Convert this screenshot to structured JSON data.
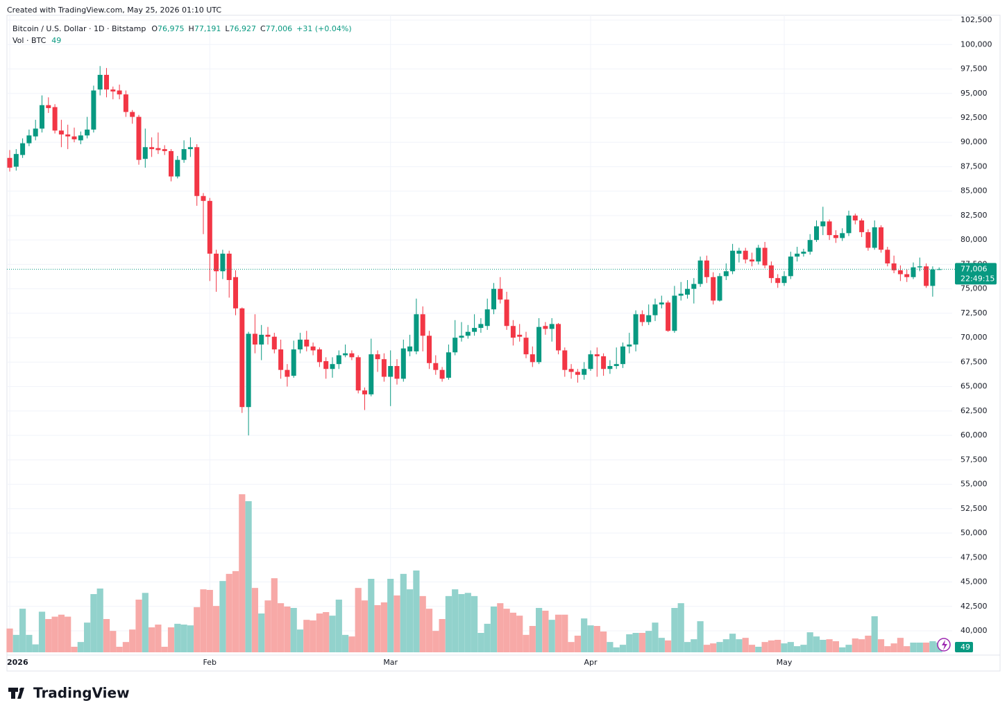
{
  "chart_data": {
    "type": "candlestick",
    "header": "Created with TradingView.com, May 25, 2026 01:10 UTC",
    "symbol": "Bitcoin / U.S. Dollar · 1D · Bitstamp",
    "ohlc_legend": [
      {
        "key": "O",
        "label": "76,975"
      },
      {
        "key": "H",
        "label": "77,191"
      },
      {
        "key": "L",
        "label": "76,927"
      },
      {
        "key": "C",
        "label": "77,006"
      }
    ],
    "change_label": "+31 (+0.04%)",
    "volume_name": "Vol · BTC",
    "last_price_label": "77,006",
    "countdown": "22:49:15",
    "brand": "TradingView",
    "up_color": "#089981",
    "down_color": "#f23645",
    "volume_up_color": "#92d2cc",
    "volume_down_color": "#f7a9a7",
    "grid": true,
    "categories": [
      "2026",
      null,
      null,
      null,
      null,
      null,
      null,
      null,
      null,
      null,
      null,
      null,
      null,
      null,
      null,
      null,
      null,
      null,
      null,
      null,
      null,
      null,
      null,
      null,
      null,
      null,
      null,
      null,
      null,
      null,
      null,
      "Feb",
      null,
      null,
      null,
      null,
      null,
      null,
      null,
      null,
      null,
      null,
      null,
      null,
      null,
      null,
      null,
      null,
      null,
      null,
      null,
      null,
      null,
      null,
      null,
      null,
      null,
      null,
      null,
      "Mar",
      null,
      null,
      null,
      null,
      null,
      null,
      null,
      null,
      null,
      null,
      null,
      null,
      null,
      null,
      null,
      null,
      null,
      null,
      null,
      null,
      null,
      null,
      null,
      null,
      null,
      null,
      null,
      null,
      null,
      null,
      "Apr",
      null,
      null,
      null,
      null,
      null,
      null,
      null,
      null,
      null,
      null,
      null,
      null,
      null,
      null,
      null,
      null,
      null,
      null,
      null,
      null,
      null,
      null,
      null,
      null,
      null,
      null,
      null,
      null,
      null,
      "May",
      null,
      null,
      null,
      null,
      null,
      null,
      null,
      null,
      null,
      null,
      null,
      null,
      null,
      null,
      null,
      null,
      null,
      null,
      null,
      null,
      null,
      null,
      null,
      null
    ],
    "open": [
      88400,
      87500,
      88700,
      89900,
      90600,
      91400,
      93800,
      93600,
      91200,
      90800,
      90600,
      90200,
      90700,
      91300,
      95400,
      96900,
      95400,
      95300,
      94900,
      93100,
      92600,
      88300,
      89500,
      89400,
      89300,
      89100,
      86500,
      88200,
      89300,
      89500,
      84500,
      84000,
      78600,
      76800,
      78600,
      76200,
      73000,
      62900,
      70400,
      69300,
      70300,
      70100,
      68800,
      66700,
      66100,
      68800,
      69800,
      69100,
      68800,
      67600,
      66800,
      67300,
      68200,
      68400,
      68000,
      64600,
      64200,
      68300,
      67800,
      66000,
      67100,
      65800,
      68600,
      68600,
      72400,
      70200,
      67400,
      66700,
      65900,
      68500,
      70000,
      70200,
      70600,
      71000,
      71200,
      72900,
      75000,
      73900,
      71200,
      70300,
      70000,
      68300,
      67500,
      71200,
      70900,
      71400,
      68700,
      66800,
      66500,
      66200,
      66800,
      68300,
      68100,
      66800,
      67100,
      67300,
      69100,
      69300,
      72400,
      71600,
      72300,
      73400,
      73600,
      70700,
      74300,
      74400,
      75000,
      75500,
      77900,
      76200,
      73800,
      76300,
      76800,
      78600,
      78900,
      78000,
      77800,
      79200,
      77400,
      76100,
      75600,
      76300,
      78300,
      78600,
      78800,
      80000,
      81400,
      81900,
      80500,
      80200,
      80700,
      82500,
      82000,
      80800,
      79200,
      81300,
      79000,
      77600,
      76900,
      76500,
      76200,
      77200,
      77300,
      75300,
      76975
    ],
    "high": [
      89200,
      89300,
      90400,
      91300,
      92300,
      94800,
      94600,
      93900,
      92300,
      91800,
      91500,
      91100,
      92600,
      95800,
      97800,
      97600,
      95700,
      95900,
      95300,
      93300,
      92800,
      91400,
      90500,
      91000,
      89700,
      89300,
      88600,
      90200,
      90500,
      89800,
      84800,
      84300,
      79000,
      79000,
      78900,
      76900,
      73100,
      70600,
      72400,
      71300,
      71100,
      70500,
      69800,
      67300,
      69700,
      70500,
      70700,
      69500,
      69000,
      68000,
      68000,
      68700,
      69300,
      68700,
      68200,
      64900,
      69900,
      68700,
      68400,
      68700,
      67800,
      69800,
      70300,
      74000,
      73200,
      70700,
      68200,
      67000,
      69300,
      71800,
      71600,
      71300,
      72400,
      72000,
      74000,
      75600,
      76200,
      74700,
      71800,
      71400,
      70600,
      69100,
      72000,
      71600,
      72000,
      71500,
      69000,
      67300,
      66800,
      67500,
      68700,
      69000,
      68400,
      67700,
      69000,
      69500,
      70500,
      72800,
      72800,
      73400,
      74000,
      74300,
      73800,
      75300,
      75700,
      75900,
      76100,
      78300,
      78400,
      76700,
      76600,
      77600,
      79600,
      79200,
      79200,
      78700,
      79500,
      79800,
      77800,
      76500,
      76800,
      78800,
      79300,
      79100,
      80600,
      82000,
      83400,
      82100,
      81000,
      81200,
      83000,
      82700,
      82200,
      81100,
      82000,
      81500,
      79300,
      78400,
      77400,
      77000,
      77700,
      78200,
      77600,
      77300,
      77191
    ],
    "low": [
      87000,
      87100,
      88400,
      89600,
      90200,
      91000,
      93000,
      90900,
      89500,
      89300,
      90000,
      89800,
      90400,
      91000,
      94800,
      94600,
      94400,
      94400,
      92600,
      91900,
      87700,
      87400,
      88500,
      88800,
      88700,
      86000,
      86300,
      87900,
      88500,
      83500,
      80600,
      75800,
      74700,
      76000,
      74100,
      72300,
      62300,
      60000,
      68400,
      67700,
      69300,
      68400,
      65800,
      65000,
      65900,
      68400,
      68600,
      68200,
      67000,
      65800,
      65900,
      66800,
      68000,
      67700,
      64300,
      62600,
      64000,
      66500,
      65500,
      63000,
      65200,
      65500,
      68100,
      68300,
      68600,
      66800,
      66200,
      65500,
      65700,
      68200,
      69600,
      69900,
      70200,
      70500,
      70800,
      72400,
      73500,
      70800,
      69200,
      69600,
      67900,
      67000,
      67300,
      70300,
      69600,
      68300,
      66000,
      65800,
      65400,
      65700,
      66600,
      66000,
      66100,
      66300,
      66800,
      66900,
      68400,
      68600,
      71200,
      71300,
      71700,
      73000,
      70600,
      70500,
      73800,
      74000,
      73500,
      75200,
      75600,
      73400,
      73700,
      75900,
      76500,
      77700,
      77600,
      77300,
      77500,
      77100,
      75600,
      75100,
      75300,
      76000,
      77800,
      78300,
      78500,
      79800,
      80500,
      80000,
      79700,
      79900,
      80400,
      81600,
      80300,
      78900,
      79000,
      78700,
      77300,
      76600,
      75800,
      75700,
      76000,
      76800,
      75100,
      74200,
      76927
    ],
    "close": [
      87400,
      88800,
      89900,
      90700,
      91400,
      93800,
      93500,
      91200,
      90800,
      90600,
      90300,
      90700,
      91300,
      95300,
      96900,
      95400,
      95200,
      94900,
      93100,
      92600,
      88200,
      89500,
      89300,
      89200,
      89100,
      86500,
      88200,
      89300,
      89500,
      84500,
      84000,
      78600,
      76800,
      78600,
      75900,
      73000,
      62900,
      70400,
      69300,
      70300,
      70100,
      68800,
      66700,
      66000,
      68800,
      69800,
      69100,
      68700,
      67500,
      66800,
      67300,
      68200,
      68400,
      68000,
      64600,
      64200,
      68300,
      67800,
      66000,
      67100,
      65800,
      68900,
      69100,
      72400,
      70200,
      67400,
      66700,
      65800,
      68500,
      70000,
      70200,
      70600,
      71000,
      71400,
      72900,
      75000,
      73900,
      71200,
      70000,
      70100,
      68300,
      67500,
      71100,
      70900,
      71400,
      68700,
      66700,
      66500,
      66200,
      66800,
      68300,
      68100,
      66800,
      67100,
      67300,
      69100,
      69300,
      72400,
      71600,
      72300,
      73400,
      73600,
      70700,
      74300,
      74500,
      75000,
      75500,
      77900,
      76200,
      73800,
      76300,
      76800,
      78900,
      78900,
      78000,
      77800,
      79200,
      77400,
      76100,
      75600,
      76300,
      78300,
      78600,
      78800,
      80000,
      81400,
      81900,
      80500,
      80200,
      80700,
      82500,
      82000,
      80800,
      79200,
      81300,
      79000,
      77600,
      76900,
      76500,
      76200,
      77200,
      77300,
      75300,
      76975,
      77006
    ],
    "volume": [
      120,
      88,
      220,
      88,
      40,
      205,
      168,
      180,
      190,
      180,
      28,
      52,
      150,
      294,
      322,
      168,
      108,
      28,
      52,
      115,
      266,
      300,
      126,
      140,
      28,
      126,
      144,
      140,
      136,
      228,
      318,
      315,
      234,
      360,
      396,
      410,
      798,
      763,
      325,
      196,
      262,
      374,
      248,
      231,
      224,
      115,
      164,
      161,
      196,
      203,
      185,
      266,
      88,
      80,
      325,
      262,
      371,
      238,
      252,
      371,
      287,
      396,
      318,
      413,
      284,
      220,
      108,
      168,
      284,
      318,
      294,
      300,
      284,
      98,
      144,
      231,
      248,
      220,
      200,
      185,
      88,
      133,
      224,
      210,
      164,
      190,
      190,
      52,
      84,
      171,
      136,
      133,
      105,
      52,
      25,
      38,
      91,
      98,
      98,
      108,
      150,
      73,
      60,
      224,
      248,
      52,
      66,
      157,
      38,
      45,
      52,
      66,
      94,
      66,
      73,
      38,
      28,
      52,
      60,
      63,
      45,
      52,
      31,
      38,
      101,
      80,
      63,
      66,
      56,
      25,
      38,
      70,
      66,
      84,
      182,
      66,
      31,
      45,
      73,
      31,
      49,
      49,
      49,
      56,
      49
    ],
    "ylim": [
      37800,
      103000
    ],
    "yticks": [
      {
        "value": 40000,
        "label": "40,000"
      },
      {
        "value": 42500,
        "label": "42,500"
      },
      {
        "value": 45000,
        "label": "45,000"
      },
      {
        "value": 47500,
        "label": "47,500"
      },
      {
        "value": 50000,
        "label": "50,000"
      },
      {
        "value": 52500,
        "label": "52,500"
      },
      {
        "value": 55000,
        "label": "55,000"
      },
      {
        "value": 57500,
        "label": "57,500"
      },
      {
        "value": 60000,
        "label": "60,000"
      },
      {
        "value": 62500,
        "label": "62,500"
      },
      {
        "value": 65000,
        "label": "65,000"
      },
      {
        "value": 67500,
        "label": "67,500"
      },
      {
        "value": 70000,
        "label": "70,000"
      },
      {
        "value": 72500,
        "label": "72,500"
      },
      {
        "value": 75000,
        "label": "75,000"
      },
      {
        "value": 77500,
        "label": "77,500"
      },
      {
        "value": 80000,
        "label": "80,000"
      },
      {
        "value": 82500,
        "label": "82,500"
      },
      {
        "value": 85000,
        "label": "85,000"
      },
      {
        "value": 87500,
        "label": "87,500"
      },
      {
        "value": 90000,
        "label": "90,000"
      },
      {
        "value": 92500,
        "label": "92,500"
      },
      {
        "value": 95000,
        "label": "95,000"
      },
      {
        "value": 97500,
        "label": "97,500"
      },
      {
        "value": 100000,
        "label": "100,000"
      },
      {
        "value": 102500,
        "label": "102,500"
      }
    ]
  }
}
